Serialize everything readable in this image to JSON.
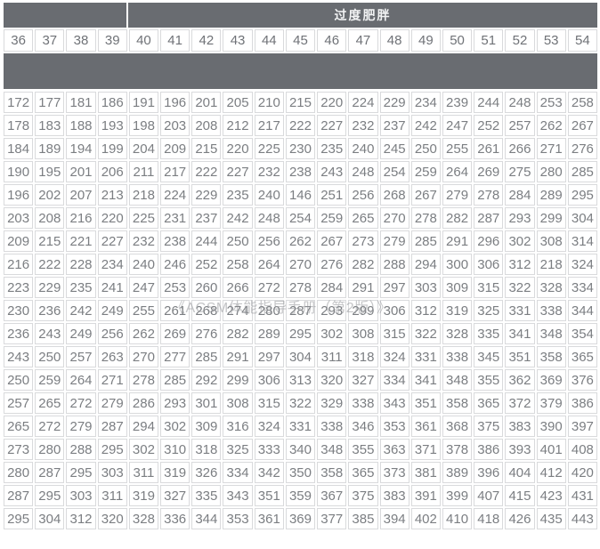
{
  "table": {
    "group_header": {
      "label": "过度肥胖"
    },
    "columns": [
      "36",
      "37",
      "38",
      "39",
      "40",
      "41",
      "42",
      "43",
      "44",
      "45",
      "46",
      "47",
      "48",
      "49",
      "50",
      "51",
      "52",
      "53",
      "54"
    ],
    "rows": [
      [
        "172",
        "177",
        "181",
        "186",
        "191",
        "196",
        "201",
        "205",
        "210",
        "215",
        "220",
        "224",
        "229",
        "234",
        "239",
        "244",
        "248",
        "253",
        "258"
      ],
      [
        "178",
        "183",
        "188",
        "193",
        "198",
        "203",
        "208",
        "212",
        "217",
        "222",
        "227",
        "232",
        "237",
        "242",
        "247",
        "252",
        "257",
        "262",
        "267"
      ],
      [
        "184",
        "189",
        "194",
        "199",
        "204",
        "209",
        "215",
        "220",
        "225",
        "230",
        "235",
        "240",
        "245",
        "250",
        "255",
        "261",
        "266",
        "271",
        "276"
      ],
      [
        "190",
        "195",
        "201",
        "206",
        "211",
        "217",
        "222",
        "227",
        "232",
        "238",
        "243",
        "248",
        "254",
        "259",
        "264",
        "269",
        "275",
        "280",
        "285"
      ],
      [
        "196",
        "202",
        "207",
        "213",
        "218",
        "224",
        "229",
        "235",
        "240",
        "146",
        "251",
        "256",
        "268",
        "267",
        "279",
        "278",
        "284",
        "289",
        "295"
      ],
      [
        "203",
        "208",
        "216",
        "220",
        "225",
        "231",
        "237",
        "242",
        "248",
        "254",
        "259",
        "265",
        "270",
        "278",
        "282",
        "287",
        "293",
        "299",
        "304"
      ],
      [
        "209",
        "215",
        "221",
        "227",
        "232",
        "238",
        "244",
        "250",
        "256",
        "262",
        "267",
        "273",
        "279",
        "285",
        "291",
        "296",
        "302",
        "308",
        "314"
      ],
      [
        "216",
        "222",
        "228",
        "234",
        "240",
        "246",
        "252",
        "258",
        "264",
        "270",
        "276",
        "282",
        "288",
        "294",
        "300",
        "306",
        "312",
        "218",
        "324"
      ],
      [
        "223",
        "229",
        "235",
        "241",
        "247",
        "253",
        "260",
        "266",
        "272",
        "278",
        "284",
        "291",
        "297",
        "303",
        "309",
        "315",
        "322",
        "328",
        "334"
      ],
      [
        "230",
        "236",
        "242",
        "249",
        "255",
        "261",
        "268",
        "274",
        "280",
        "287",
        "293",
        "299",
        "306",
        "312",
        "319",
        "325",
        "331",
        "338",
        "344"
      ],
      [
        "236",
        "243",
        "249",
        "256",
        "262",
        "269",
        "276",
        "282",
        "289",
        "295",
        "302",
        "308",
        "315",
        "322",
        "328",
        "335",
        "341",
        "348",
        "354"
      ],
      [
        "243",
        "250",
        "257",
        "263",
        "270",
        "277",
        "285",
        "291",
        "297",
        "304",
        "311",
        "318",
        "324",
        "331",
        "338",
        "345",
        "351",
        "358",
        "365"
      ],
      [
        "250",
        "259",
        "264",
        "271",
        "278",
        "285",
        "292",
        "299",
        "306",
        "313",
        "320",
        "327",
        "334",
        "341",
        "348",
        "355",
        "362",
        "369",
        "376"
      ],
      [
        "257",
        "265",
        "272",
        "279",
        "286",
        "293",
        "301",
        "308",
        "315",
        "322",
        "329",
        "338",
        "343",
        "351",
        "358",
        "365",
        "372",
        "379",
        "386"
      ],
      [
        "265",
        "272",
        "279",
        "287",
        "294",
        "302",
        "309",
        "316",
        "324",
        "331",
        "338",
        "346",
        "353",
        "361",
        "368",
        "375",
        "383",
        "390",
        "397"
      ],
      [
        "273",
        "280",
        "288",
        "295",
        "302",
        "310",
        "318",
        "325",
        "333",
        "340",
        "348",
        "355",
        "363",
        "371",
        "378",
        "386",
        "393",
        "401",
        "408"
      ],
      [
        "280",
        "287",
        "295",
        "303",
        "311",
        "319",
        "326",
        "334",
        "342",
        "350",
        "358",
        "365",
        "373",
        "381",
        "389",
        "396",
        "404",
        "412",
        "420"
      ],
      [
        "287",
        "295",
        "303",
        "311",
        "319",
        "327",
        "335",
        "343",
        "351",
        "359",
        "367",
        "375",
        "383",
        "391",
        "399",
        "407",
        "415",
        "423",
        "431"
      ],
      [
        "295",
        "304",
        "312",
        "320",
        "328",
        "336",
        "344",
        "353",
        "361",
        "369",
        "377",
        "385",
        "394",
        "402",
        "410",
        "418",
        "426",
        "435",
        "443"
      ]
    ]
  },
  "watermark": "《ACSM体能指导手册（第2版）》",
  "colors": {
    "header_bg": "#696c71",
    "header_text": "#f2f3f4",
    "cell_text": "#7b7e82",
    "cell_border": "#d9dadc",
    "watermark_text": "#94969a"
  }
}
